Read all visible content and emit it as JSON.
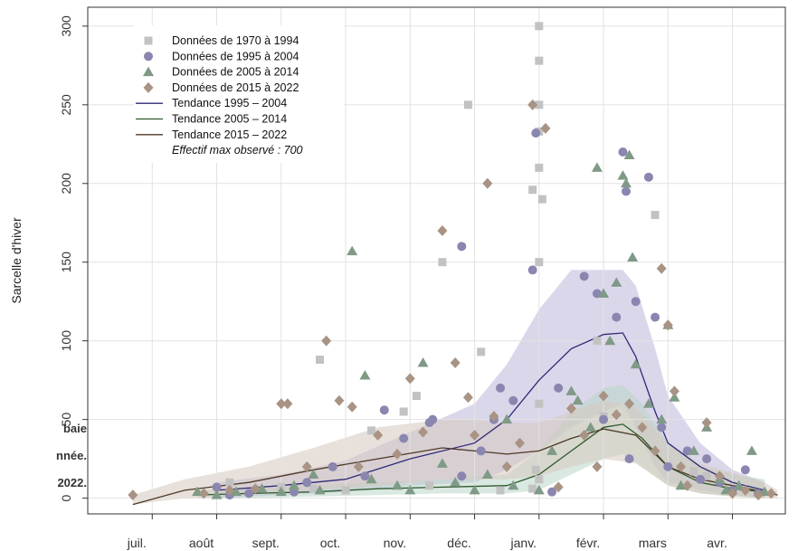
{
  "chart_data": {
    "type": "scatter",
    "ylabel": "Sarcelle d'hiver",
    "xlabel": "",
    "ylim": [
      0,
      300
    ],
    "yticks": [
      0,
      50,
      100,
      150,
      200,
      250,
      300
    ],
    "grid": true,
    "legend_position": "top-left",
    "months": [
      "juil.",
      "août",
      "sept.",
      "oct.",
      "nov.",
      "déc.",
      "janv.",
      "févr.",
      "mars",
      "avr."
    ],
    "colors": {
      "s1970": "#c2c2c2",
      "s1995": "#8a86b0",
      "s2005": "#7f9a86",
      "s2015": "#a89384",
      "t1995": "#2e2a78",
      "t2005": "#2f5a2f",
      "t2015": "#4d3a28",
      "band1995": "#bdb6d8",
      "band2005": "#b9d6c6",
      "band2015": "#d6c9bd"
    },
    "legend": [
      {
        "label": "Données de 1970 à 1994",
        "marker": "square",
        "color_key": "s1970"
      },
      {
        "label": "Données de 1995 à 2004",
        "marker": "circle",
        "color_key": "s1995"
      },
      {
        "label": "Données de 2005 à 2014",
        "marker": "triangle",
        "color_key": "s2005"
      },
      {
        "label": "Données de 2015 à 2022",
        "marker": "diamond",
        "color_key": "s2015"
      },
      {
        "label": "Tendance 1995 – 2004",
        "marker": "line",
        "color_key": "t1995"
      },
      {
        "label": "Tendance 2005 – 2014",
        "marker": "line",
        "color_key": "t2005"
      },
      {
        "label": "Tendance 2015 – 2022",
        "marker": "line",
        "color_key": "t2015"
      }
    ],
    "legend_note": "Effectif max observé :  700",
    "caption_fragments": [
      "baie",
      "nnée.",
      "2022."
    ],
    "scatter": [
      {
        "name": "Données de 1970 à 1994",
        "marker": "square",
        "color_key": "s1970",
        "points": [
          [
            2.2,
            10
          ],
          [
            3.6,
            88
          ],
          [
            4.4,
            43
          ],
          [
            4.9,
            55
          ],
          [
            5.1,
            65
          ],
          [
            5.5,
            150
          ],
          [
            5.9,
            250
          ],
          [
            6.1,
            93
          ],
          [
            6.4,
            5
          ],
          [
            7.0,
            300
          ],
          [
            7.0,
            278
          ],
          [
            7.0,
            250
          ],
          [
            7.0,
            233
          ],
          [
            6.9,
            196
          ],
          [
            7.05,
            190
          ],
          [
            7.0,
            210
          ],
          [
            7.0,
            150
          ],
          [
            7.0,
            60
          ],
          [
            6.95,
            18
          ],
          [
            7.0,
            12
          ],
          [
            6.9,
            6
          ],
          [
            7.9,
            100
          ],
          [
            8.0,
            52
          ],
          [
            8.8,
            180
          ],
          [
            9.4,
            17
          ],
          [
            9.6,
            14
          ],
          [
            3.0,
            7
          ],
          [
            3.5,
            6
          ],
          [
            4.0,
            5
          ],
          [
            5.3,
            8
          ]
        ]
      },
      {
        "name": "Données de 1995 à 2004",
        "marker": "circle",
        "color_key": "s1995",
        "points": [
          [
            2.0,
            7
          ],
          [
            2.2,
            2
          ],
          [
            2.5,
            3
          ],
          [
            3.2,
            4
          ],
          [
            3.4,
            10
          ],
          [
            3.8,
            20
          ],
          [
            4.3,
            14
          ],
          [
            4.6,
            56
          ],
          [
            4.9,
            38
          ],
          [
            5.3,
            48
          ],
          [
            5.35,
            50
          ],
          [
            5.8,
            160
          ],
          [
            5.8,
            14
          ],
          [
            6.1,
            30
          ],
          [
            6.3,
            50
          ],
          [
            6.4,
            70
          ],
          [
            6.6,
            62
          ],
          [
            6.9,
            145
          ],
          [
            6.95,
            232
          ],
          [
            7.2,
            4
          ],
          [
            7.3,
            70
          ],
          [
            7.7,
            141
          ],
          [
            7.9,
            130
          ],
          [
            8.0,
            50
          ],
          [
            8.2,
            115
          ],
          [
            8.3,
            220
          ],
          [
            8.35,
            195
          ],
          [
            8.4,
            25
          ],
          [
            8.5,
            125
          ],
          [
            8.7,
            204
          ],
          [
            8.8,
            115
          ],
          [
            8.9,
            45
          ],
          [
            9.0,
            20
          ],
          [
            9.3,
            30
          ],
          [
            9.5,
            12
          ],
          [
            9.6,
            25
          ],
          [
            9.8,
            10
          ],
          [
            10.0,
            5
          ],
          [
            10.2,
            18
          ],
          [
            10.4,
            3
          ]
        ]
      },
      {
        "name": "Données de 2005 à 2014",
        "marker": "triangle",
        "color_key": "s2005",
        "points": [
          [
            1.7,
            4
          ],
          [
            2.0,
            2
          ],
          [
            2.3,
            4
          ],
          [
            2.7,
            6
          ],
          [
            3.0,
            4
          ],
          [
            3.2,
            8
          ],
          [
            3.5,
            15
          ],
          [
            3.6,
            5
          ],
          [
            4.1,
            157
          ],
          [
            4.3,
            78
          ],
          [
            4.4,
            12
          ],
          [
            4.8,
            8
          ],
          [
            5.0,
            5
          ],
          [
            5.2,
            86
          ],
          [
            5.5,
            22
          ],
          [
            5.7,
            10
          ],
          [
            6.0,
            5
          ],
          [
            6.2,
            15
          ],
          [
            6.5,
            50
          ],
          [
            6.6,
            8
          ],
          [
            7.0,
            5
          ],
          [
            7.2,
            30
          ],
          [
            7.5,
            68
          ],
          [
            7.6,
            62
          ],
          [
            7.8,
            45
          ],
          [
            7.9,
            210
          ],
          [
            8.0,
            130
          ],
          [
            8.1,
            100
          ],
          [
            8.2,
            137
          ],
          [
            8.3,
            205
          ],
          [
            8.35,
            200
          ],
          [
            8.4,
            218
          ],
          [
            8.45,
            153
          ],
          [
            8.5,
            85
          ],
          [
            8.7,
            60
          ],
          [
            8.9,
            50
          ],
          [
            9.0,
            110
          ],
          [
            9.1,
            64
          ],
          [
            9.2,
            8
          ],
          [
            9.4,
            30
          ],
          [
            9.6,
            45
          ],
          [
            9.8,
            12
          ],
          [
            9.9,
            5
          ],
          [
            10.1,
            8
          ],
          [
            10.3,
            30
          ],
          [
            10.5,
            4
          ]
        ]
      },
      {
        "name": "Données de 2015 à 2022",
        "marker": "diamond",
        "color_key": "s2015",
        "points": [
          [
            0.7,
            2
          ],
          [
            1.8,
            3
          ],
          [
            2.2,
            5
          ],
          [
            2.6,
            6
          ],
          [
            3.0,
            60
          ],
          [
            3.1,
            60
          ],
          [
            3.4,
            20
          ],
          [
            3.7,
            100
          ],
          [
            3.9,
            62
          ],
          [
            4.1,
            58
          ],
          [
            4.2,
            20
          ],
          [
            4.5,
            40
          ],
          [
            4.8,
            28
          ],
          [
            5.0,
            76
          ],
          [
            5.2,
            42
          ],
          [
            5.5,
            170
          ],
          [
            5.7,
            86
          ],
          [
            5.9,
            64
          ],
          [
            6.0,
            40
          ],
          [
            6.2,
            200
          ],
          [
            6.3,
            52
          ],
          [
            6.5,
            20
          ],
          [
            6.7,
            35
          ],
          [
            6.9,
            250
          ],
          [
            7.1,
            235
          ],
          [
            7.3,
            7
          ],
          [
            7.5,
            57
          ],
          [
            7.7,
            40
          ],
          [
            7.9,
            20
          ],
          [
            8.0,
            65
          ],
          [
            8.2,
            53
          ],
          [
            8.4,
            60
          ],
          [
            8.6,
            45
          ],
          [
            8.8,
            30
          ],
          [
            8.9,
            146
          ],
          [
            9.0,
            110
          ],
          [
            9.1,
            68
          ],
          [
            9.2,
            20
          ],
          [
            9.3,
            8
          ],
          [
            9.6,
            48
          ],
          [
            9.8,
            14
          ],
          [
            10.0,
            3
          ],
          [
            10.2,
            5
          ],
          [
            10.4,
            2
          ],
          [
            10.6,
            3
          ]
        ]
      }
    ],
    "trends": [
      {
        "name": "Tendance 1995 – 2004",
        "color_key": "t1995",
        "band_key": "band1995",
        "x": [
          2.0,
          3.0,
          4.0,
          5.0,
          6.0,
          6.5,
          7.0,
          7.5,
          8.0,
          8.3,
          8.5,
          8.8,
          9.0,
          9.5,
          10.0,
          10.5
        ],
        "y": [
          5,
          8,
          12,
          25,
          35,
          50,
          75,
          95,
          104,
          105,
          90,
          55,
          35,
          20,
          10,
          5
        ],
        "lower": [
          0,
          2,
          4,
          8,
          10,
          18,
          30,
          45,
          55,
          60,
          45,
          20,
          10,
          5,
          2,
          0
        ],
        "upper": [
          10,
          15,
          24,
          42,
          60,
          85,
          120,
          145,
          145,
          145,
          135,
          95,
          65,
          35,
          18,
          10
        ]
      },
      {
        "name": "Tendance 2005 – 2014",
        "color_key": "t2005",
        "band_key": "band2005",
        "x": [
          1.7,
          2.5,
          3.5,
          4.5,
          5.5,
          6.5,
          7.0,
          7.5,
          8.0,
          8.3,
          8.6,
          9.0,
          9.5,
          10.0,
          10.5
        ],
        "y": [
          2,
          3,
          4,
          6,
          7,
          8,
          15,
          30,
          45,
          47,
          38,
          20,
          10,
          6,
          4
        ],
        "lower": [
          0,
          0,
          1,
          2,
          3,
          3,
          5,
          15,
          25,
          28,
          20,
          8,
          3,
          1,
          0
        ],
        "upper": [
          5,
          6,
          8,
          10,
          12,
          15,
          30,
          55,
          70,
          72,
          60,
          35,
          20,
          15,
          12
        ]
      },
      {
        "name": "Tendance 2015 – 2022",
        "color_key": "t2015",
        "band_key": "band2015",
        "x": [
          0.7,
          1.5,
          2.5,
          3.5,
          4.5,
          5.5,
          6.0,
          6.5,
          7.0,
          7.5,
          8.0,
          8.5,
          9.0,
          9.5,
          10.0,
          10.5,
          10.7
        ],
        "y": [
          -4,
          5,
          10,
          18,
          25,
          32,
          30,
          28,
          30,
          38,
          44,
          40,
          20,
          12,
          8,
          4,
          2
        ],
        "lower": [
          -4,
          0,
          2,
          5,
          8,
          12,
          12,
          12,
          14,
          20,
          25,
          22,
          8,
          3,
          1,
          0,
          0
        ],
        "upper": [
          2,
          12,
          20,
          32,
          45,
          50,
          50,
          48,
          48,
          55,
          62,
          58,
          35,
          22,
          16,
          10,
          5
        ]
      }
    ]
  }
}
